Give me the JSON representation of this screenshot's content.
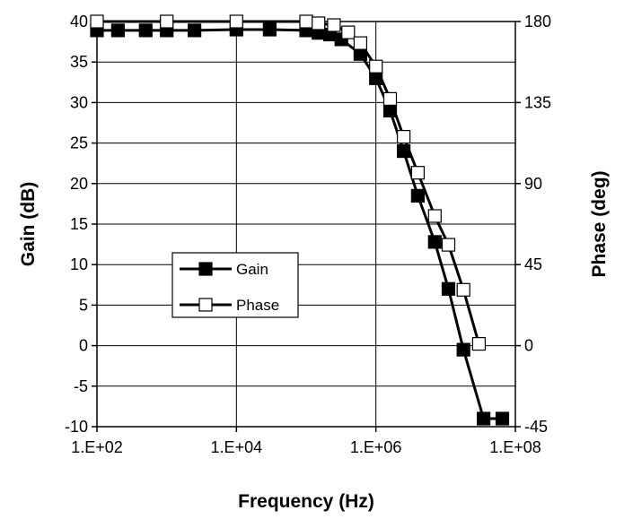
{
  "chart_data": {
    "type": "line",
    "xlabel": "Frequency (Hz)",
    "ylabel": "Gain (dB)",
    "y2label": "Phase (deg)",
    "x_scale": "log",
    "xlim": [
      100,
      100000000
    ],
    "ylim": [
      -10,
      40
    ],
    "y2lim": [
      -45,
      180
    ],
    "x_ticks": [
      "1.E+02",
      "1.E+04",
      "1.E+06",
      "1.E+08"
    ],
    "y_ticks": [
      "40",
      "35",
      "30",
      "25",
      "20",
      "15",
      "10",
      "5",
      "0",
      "-5",
      "-10"
    ],
    "y2_ticks": [
      "180",
      "135",
      "90",
      "45",
      "0",
      "-45"
    ],
    "grid": true,
    "legend_position": "center-left",
    "series": [
      {
        "name": "Gain",
        "axis": "left",
        "marker": "filled-square",
        "color": "#000000",
        "x": [
          100,
          200,
          500,
          1000,
          2500,
          10000,
          30000,
          100000,
          150000,
          220000,
          320000,
          600000,
          1000000,
          1600000,
          2500000,
          4000000,
          7000000,
          11000000,
          18000000,
          35000000,
          65000000
        ],
        "y": [
          38.9,
          38.9,
          38.9,
          38.9,
          38.9,
          39.0,
          39.0,
          38.9,
          38.6,
          38.4,
          37.8,
          36.0,
          33.0,
          29.0,
          24.0,
          18.5,
          12.8,
          7.0,
          -0.5,
          -9.0,
          -9.0
        ]
      },
      {
        "name": "Phase",
        "axis": "right",
        "marker": "open-square",
        "color": "#000000",
        "x": [
          100,
          1000,
          10000,
          100000,
          150000,
          250000,
          400000,
          600000,
          1000000,
          1600000,
          2500000,
          4000000,
          7000000,
          11000000,
          18000000,
          30000000
        ],
        "y": [
          180,
          180,
          180,
          180,
          179,
          178,
          174,
          168,
          155,
          137,
          116,
          96,
          72,
          56,
          31,
          1
        ]
      }
    ]
  }
}
